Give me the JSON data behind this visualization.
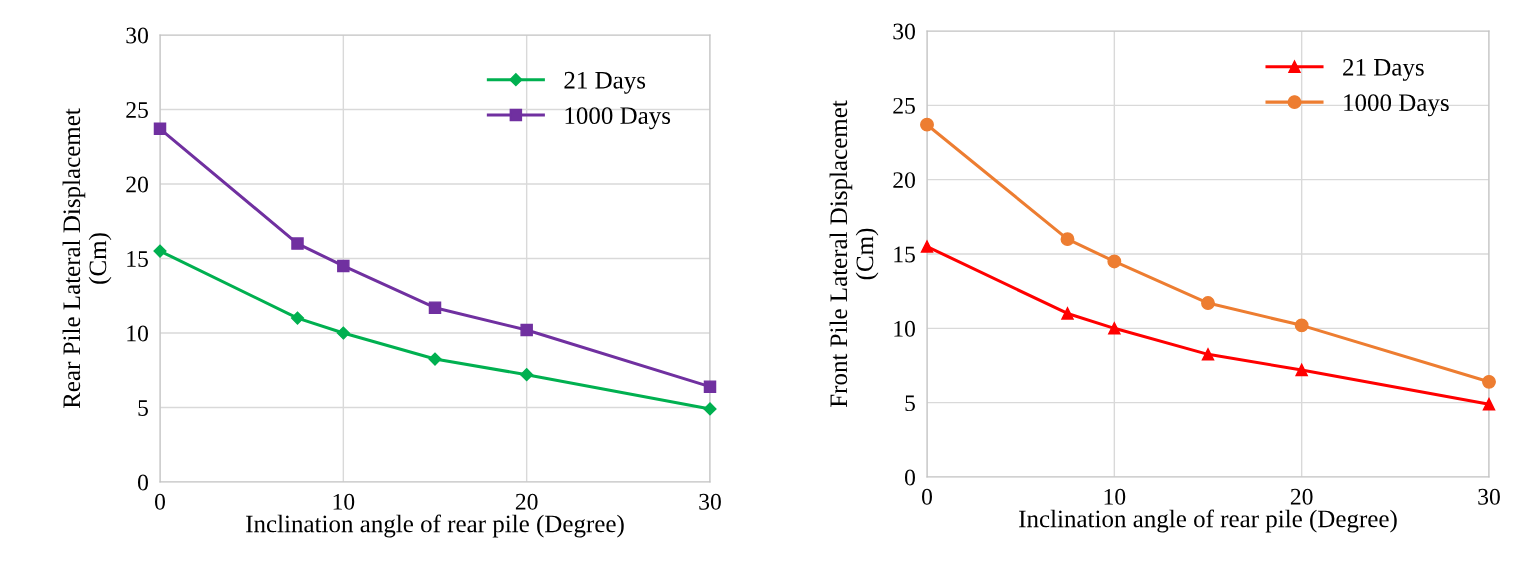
{
  "chart_data": [
    {
      "type": "line",
      "xlabel": "Inclination angle of rear pile (Degree)",
      "ylabel": "Rear Pile Lateral Displacemet\n(Cm)",
      "xlim": [
        0,
        30
      ],
      "xticks": [
        0,
        10,
        20,
        30
      ],
      "ylim": [
        0,
        30
      ],
      "yticks": [
        0,
        5,
        10,
        15,
        20,
        25,
        30
      ],
      "grid": true,
      "legend": "top right",
      "series": [
        {
          "name": "21 Days",
          "color": "#00b050",
          "marker": "diamond",
          "x": [
            0,
            7.5,
            10,
            15,
            20,
            30
          ],
          "values": [
            15.5,
            11,
            10,
            8.25,
            7.2,
            4.9
          ]
        },
        {
          "name": "1000 Days",
          "color": "#7030a0",
          "marker": "square",
          "x": [
            0,
            7.5,
            10,
            15,
            20,
            30
          ],
          "values": [
            23.7,
            16,
            14.5,
            11.7,
            10.2,
            6.4
          ]
        }
      ]
    },
    {
      "type": "line",
      "xlabel": "Inclination angle of rear pile (Degree)",
      "ylabel": "Front Pile Lateral Displacemet\n(Cm)",
      "xlim": [
        0,
        30
      ],
      "xticks": [
        0,
        10,
        20,
        30
      ],
      "ylim": [
        0,
        30
      ],
      "yticks": [
        0,
        5,
        10,
        15,
        20,
        25,
        30
      ],
      "grid": true,
      "legend": "top right",
      "series": [
        {
          "name": "21 Days",
          "color": "#ff0000",
          "marker": "triangle",
          "x": [
            0,
            7.5,
            10,
            15,
            20,
            30
          ],
          "values": [
            15.5,
            11,
            10,
            8.25,
            7.2,
            4.9
          ]
        },
        {
          "name": "1000 Days",
          "color": "#ed7d31",
          "marker": "circle",
          "x": [
            0,
            7.5,
            10,
            15,
            20,
            30
          ],
          "values": [
            23.7,
            16,
            14.5,
            11.7,
            10.2,
            6.4
          ]
        }
      ]
    }
  ]
}
